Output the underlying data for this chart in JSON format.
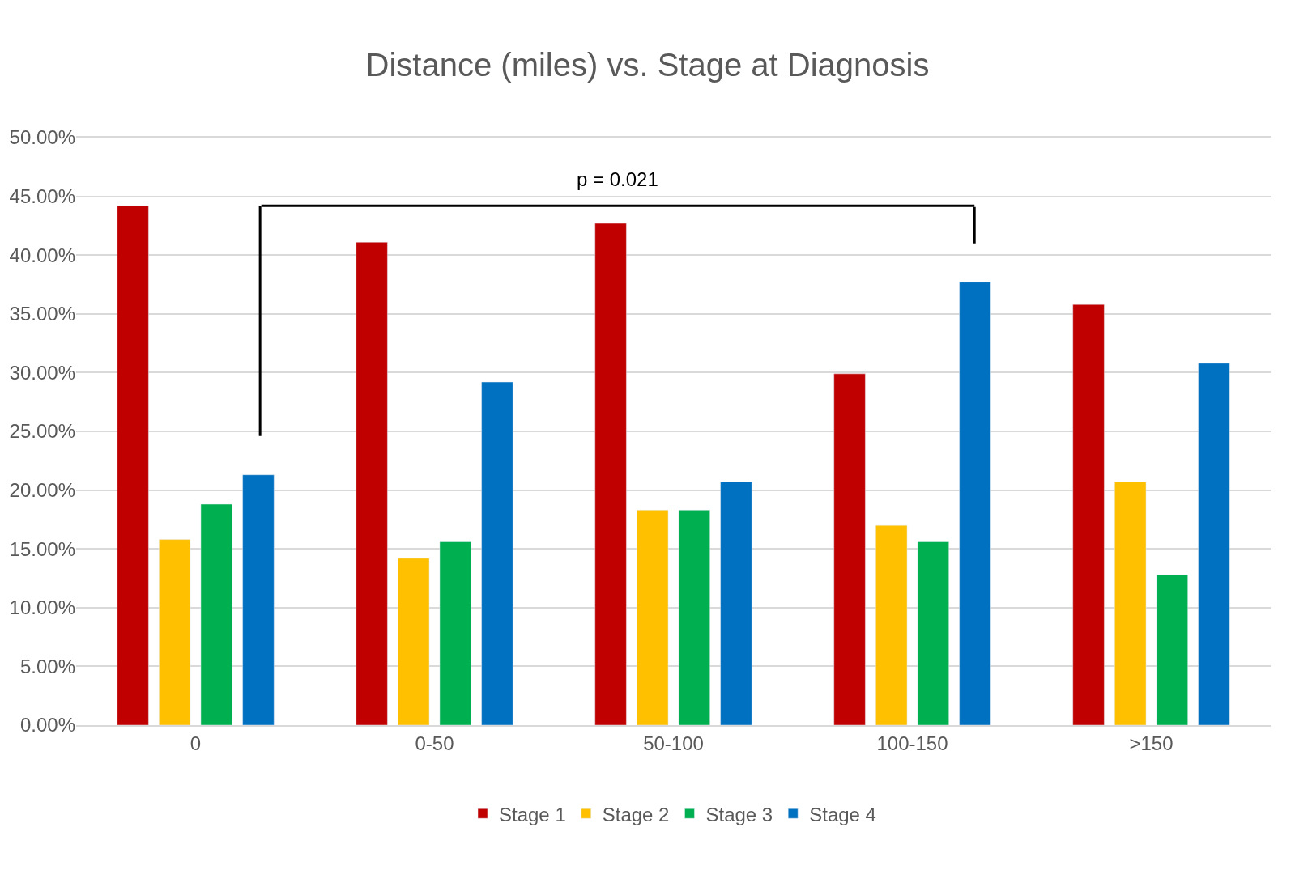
{
  "chart_data": {
    "type": "bar",
    "title": "Distance (miles) vs. Stage at Diagnosis",
    "categories": [
      "0",
      "0-50",
      "50-100",
      "100-150",
      ">150"
    ],
    "series": [
      {
        "name": "Stage 1",
        "color": "#c00000",
        "values": [
          44.2,
          41.1,
          42.7,
          29.9,
          35.8
        ]
      },
      {
        "name": "Stage 2",
        "color": "#ffc000",
        "values": [
          15.8,
          14.2,
          18.3,
          17.0,
          20.7
        ]
      },
      {
        "name": "Stage 3",
        "color": "#00b050",
        "values": [
          18.8,
          15.6,
          18.3,
          15.6,
          12.8
        ]
      },
      {
        "name": "Stage 4",
        "color": "#0070c0",
        "values": [
          21.3,
          29.2,
          20.7,
          37.7,
          30.8
        ]
      }
    ],
    "ylim": [
      0,
      50
    ],
    "yticks": [
      {
        "value": 0,
        "label": "0.00%"
      },
      {
        "value": 5,
        "label": "5.00%"
      },
      {
        "value": 10,
        "label": "10.00%"
      },
      {
        "value": 15,
        "label": "15.00%"
      },
      {
        "value": 20,
        "label": "20.00%"
      },
      {
        "value": 25,
        "label": "25.00%"
      },
      {
        "value": 30,
        "label": "30.00%"
      },
      {
        "value": 35,
        "label": "35.00%"
      },
      {
        "value": 40,
        "label": "40.00%"
      },
      {
        "value": 45,
        "label": "45.00%"
      },
      {
        "value": 50,
        "label": "50.00%"
      }
    ],
    "grid": "y",
    "legend": "bottom",
    "annotations": [
      "p = 0.021"
    ]
  }
}
